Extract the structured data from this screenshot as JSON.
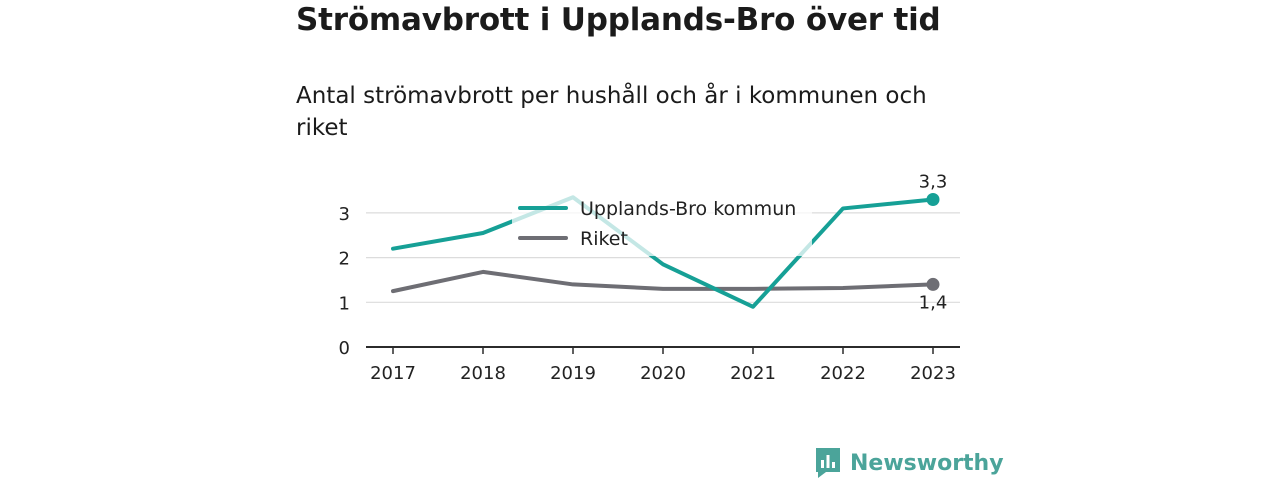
{
  "header": {
    "title": "Strömavbrott i Upplands-Bro över tid",
    "subtitle": "Antal strömavbrott per hushåll och år i kommunen och riket"
  },
  "brand": {
    "name": "Newsworthy",
    "color": "#4ba49a"
  },
  "chart_data": {
    "type": "line",
    "categories": [
      "2017",
      "2018",
      "2019",
      "2020",
      "2021",
      "2022",
      "2023"
    ],
    "ylim": [
      0,
      3.4
    ],
    "yticks": [
      "0",
      "1",
      "2",
      "3"
    ],
    "grid": true,
    "legend_position": "top-center",
    "series": [
      {
        "name": "Upplands-Bro kommun",
        "color": "#16a096",
        "values": [
          2.2,
          2.55,
          3.35,
          1.85,
          0.9,
          3.1,
          3.3
        ],
        "end_label": "3,3"
      },
      {
        "name": "Riket",
        "color": "#6e6e74",
        "values": [
          1.25,
          1.68,
          1.4,
          1.3,
          1.3,
          1.32,
          1.4
        ],
        "end_label": "1,4"
      }
    ]
  }
}
